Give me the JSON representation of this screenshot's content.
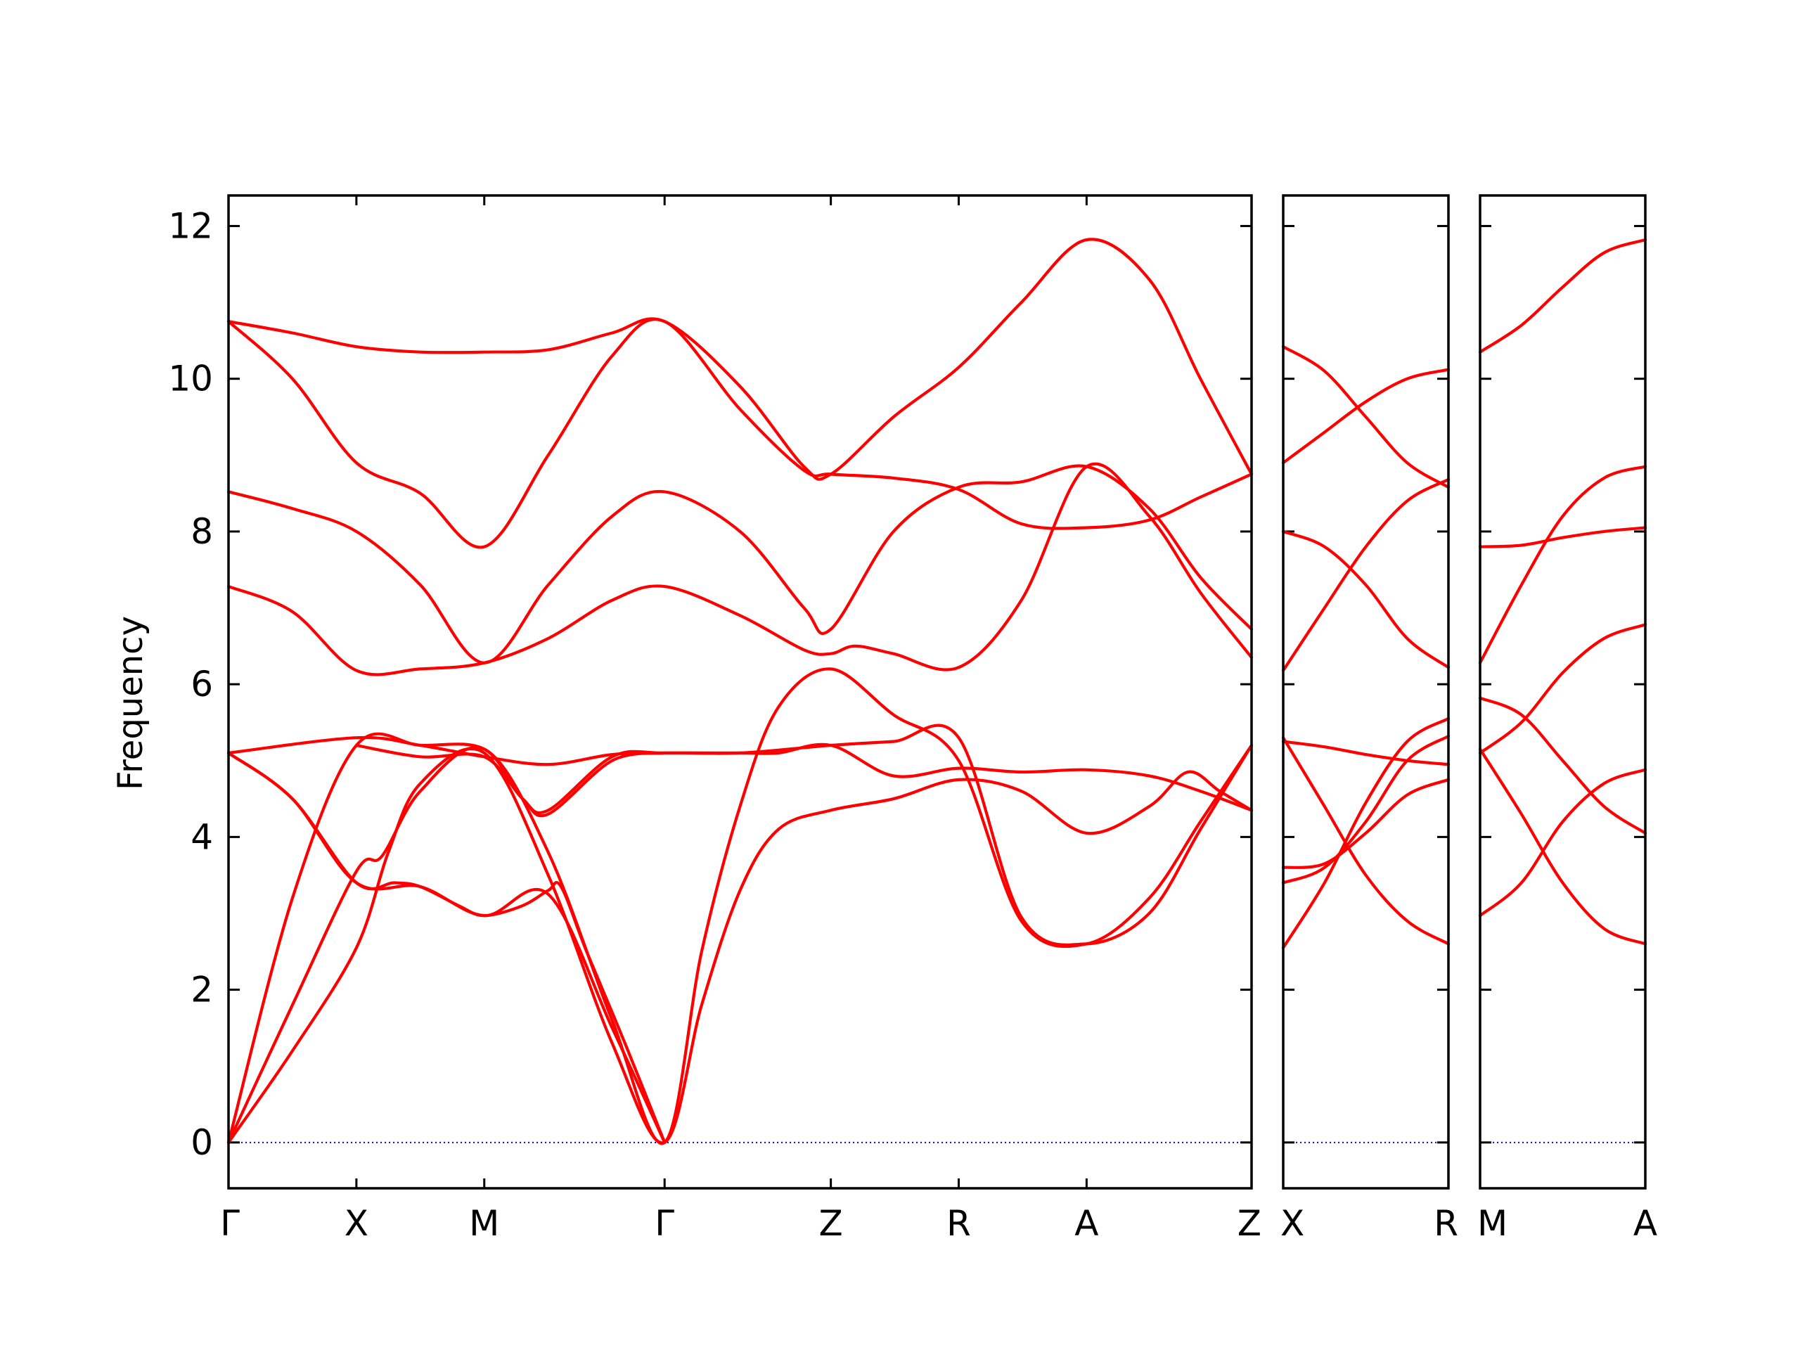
{
  "chart_data": {
    "type": "line",
    "ylabel": "Frequency",
    "ylim": [
      -0.6,
      12.4
    ],
    "yticks": [
      0,
      2,
      4,
      6,
      8,
      10,
      12
    ],
    "line_color": "#ff0000",
    "zero_line_color": "#0000ff",
    "grid": false,
    "panels": [
      {
        "id": "p1",
        "xlim": [
          0,
          8
        ],
        "kpoints": [
          {
            "label": "Γ",
            "x": 0
          },
          {
            "label": "X",
            "x": 1
          },
          {
            "label": "M",
            "x": 2
          },
          {
            "label": "Γ",
            "x": 3.41
          },
          {
            "label": "Z",
            "x": 4.71
          },
          {
            "label": "R",
            "x": 5.71
          },
          {
            "label": "A",
            "x": 6.71
          },
          {
            "label": "Z",
            "x": 8
          }
        ],
        "bands": [
          [
            [
              0,
              0
            ],
            [
              0.5,
              1.2
            ],
            [
              1,
              2.55
            ],
            [
              1.25,
              3.8
            ],
            [
              1.5,
              4.7
            ],
            [
              2,
              5.1
            ],
            [
              2.5,
              3.5
            ],
            [
              3,
              1.3
            ],
            [
              3.41,
              0
            ],
            [
              3.7,
              1.8
            ],
            [
              4,
              3.3
            ],
            [
              4.3,
              4.1
            ],
            [
              4.71,
              4.35
            ],
            [
              5.2,
              4.5
            ],
            [
              5.71,
              4.75
            ],
            [
              6.2,
              4.6
            ],
            [
              6.71,
              4.05
            ],
            [
              7.2,
              4.4
            ],
            [
              7.5,
              4.85
            ],
            [
              7.75,
              4.6
            ],
            [
              8,
              4.35
            ]
          ],
          [
            [
              0,
              0
            ],
            [
              0.5,
              1.8
            ],
            [
              1,
              3.55
            ],
            [
              1.2,
              3.75
            ],
            [
              1.5,
              4.6
            ],
            [
              2,
              5.15
            ],
            [
              2.5,
              3.8
            ],
            [
              3,
              1.6
            ],
            [
              3.41,
              0
            ],
            [
              3.7,
              2.5
            ],
            [
              4,
              4.4
            ],
            [
              4.3,
              5.7
            ],
            [
              4.71,
              6.2
            ],
            [
              5.2,
              5.6
            ],
            [
              5.71,
              5.0
            ],
            [
              6.2,
              2.9
            ],
            [
              6.71,
              2.6
            ],
            [
              7.2,
              3.2
            ],
            [
              7.6,
              4.2
            ],
            [
              8,
              5.2
            ]
          ],
          [
            [
              0,
              0
            ],
            [
              0.5,
              3.2
            ],
            [
              1,
              5.2
            ],
            [
              1.5,
              5.2
            ],
            [
              2,
              5.15
            ],
            [
              2.3,
              4.5
            ],
            [
              2.5,
              4.35
            ],
            [
              3,
              5.05
            ],
            [
              3.41,
              5.1
            ],
            [
              4,
              5.1
            ],
            [
              4.71,
              5.2
            ],
            [
              5.2,
              5.25
            ],
            [
              5.71,
              5.3
            ],
            [
              6.2,
              2.95
            ],
            [
              6.71,
              2.6
            ],
            [
              7.2,
              3.0
            ],
            [
              7.6,
              4.1
            ],
            [
              8,
              5.2
            ]
          ],
          [
            [
              0,
              5.1
            ],
            [
              0.5,
              4.5
            ],
            [
              1,
              3.4
            ],
            [
              1.5,
              3.35
            ],
            [
              2,
              2.97
            ],
            [
              2.5,
              3.25
            ],
            [
              3,
              1.5
            ],
            [
              3.41,
              0
            ]
          ],
          [
            [
              0,
              5.1
            ],
            [
              1,
              5.3
            ],
            [
              1.5,
              5.2
            ],
            [
              2,
              5.05
            ],
            [
              2.5,
              4.95
            ],
            [
              3,
              5.08
            ],
            [
              3.41,
              5.1
            ],
            [
              4,
              5.1
            ],
            [
              4.3,
              5.1
            ],
            [
              4.71,
              5.2
            ],
            [
              5.2,
              4.8
            ],
            [
              5.71,
              4.9
            ],
            [
              6.2,
              4.85
            ],
            [
              6.71,
              4.88
            ],
            [
              7.2,
              4.8
            ],
            [
              7.6,
              4.6
            ],
            [
              8,
              4.35
            ]
          ],
          [
            [
              0,
              5.1
            ],
            [
              0.5,
              4.5
            ],
            [
              1,
              3.4
            ],
            [
              1.3,
              3.4
            ],
            [
              1.5,
              3.35
            ],
            [
              1.8,
              3.1
            ],
            [
              2,
              2.97
            ],
            [
              2.3,
              3.1
            ],
            [
              2.5,
              3.3
            ],
            [
              2.6,
              3.35
            ],
            [
              2.8,
              2.5
            ],
            [
              3.1,
              1.3
            ],
            [
              3.41,
              0
            ]
          ],
          [
            [
              1,
              5.2
            ],
            [
              1.5,
              5.05
            ],
            [
              2,
              5.05
            ],
            [
              2.3,
              4.5
            ],
            [
              2.5,
              4.3
            ],
            [
              3,
              5.0
            ],
            [
              3.41,
              5.1
            ]
          ],
          [
            [
              0,
              7.28
            ],
            [
              0.5,
              6.95
            ],
            [
              1,
              6.18
            ],
            [
              1.5,
              6.2
            ],
            [
              2,
              6.28
            ],
            [
              2.5,
              6.6
            ],
            [
              3,
              7.1
            ],
            [
              3.41,
              7.28
            ],
            [
              4,
              6.9
            ],
            [
              4.5,
              6.45
            ],
            [
              4.71,
              6.4
            ],
            [
              4.9,
              6.5
            ],
            [
              5.2,
              6.4
            ],
            [
              5.71,
              6.22
            ],
            [
              6.2,
              7.1
            ],
            [
              6.71,
              8.85
            ],
            [
              7.2,
              8.2
            ],
            [
              7.6,
              7.2
            ],
            [
              8,
              6.35
            ]
          ],
          [
            [
              0,
              8.52
            ],
            [
              0.5,
              8.3
            ],
            [
              1,
              8.0
            ],
            [
              1.5,
              7.3
            ],
            [
              2,
              6.28
            ],
            [
              2.5,
              7.3
            ],
            [
              3,
              8.2
            ],
            [
              3.41,
              8.52
            ],
            [
              4,
              8.0
            ],
            [
              4.5,
              7.0
            ],
            [
              4.71,
              6.72
            ],
            [
              5.2,
              8.0
            ],
            [
              5.71,
              8.58
            ],
            [
              6.2,
              8.65
            ],
            [
              6.71,
              8.85
            ],
            [
              7.2,
              8.3
            ],
            [
              7.6,
              7.4
            ],
            [
              8,
              6.72
            ]
          ],
          [
            [
              0,
              10.75
            ],
            [
              0.5,
              10.0
            ],
            [
              1,
              8.9
            ],
            [
              1.5,
              8.5
            ],
            [
              2,
              7.8
            ],
            [
              2.5,
              9.0
            ],
            [
              3,
              10.3
            ],
            [
              3.41,
              10.75
            ],
            [
              4,
              9.6
            ],
            [
              4.5,
              8.8
            ],
            [
              4.71,
              8.75
            ],
            [
              5.2,
              8.7
            ],
            [
              5.71,
              8.55
            ],
            [
              6.2,
              8.1
            ],
            [
              6.71,
              8.05
            ],
            [
              7.2,
              8.15
            ],
            [
              7.6,
              8.45
            ],
            [
              8,
              8.75
            ]
          ],
          [
            [
              0,
              10.75
            ],
            [
              0.5,
              10.6
            ],
            [
              1,
              10.42
            ],
            [
              1.5,
              10.35
            ],
            [
              2,
              10.35
            ],
            [
              2.5,
              10.38
            ],
            [
              3,
              10.6
            ],
            [
              3.41,
              10.75
            ],
            [
              4,
              9.9
            ],
            [
              4.5,
              8.85
            ],
            [
              4.71,
              8.75
            ],
            [
              5.2,
              9.5
            ],
            [
              5.71,
              10.15
            ],
            [
              6.2,
              11.0
            ],
            [
              6.71,
              11.82
            ],
            [
              7.2,
              11.3
            ],
            [
              7.6,
              10.0
            ],
            [
              8,
              8.75
            ]
          ]
        ]
      },
      {
        "id": "p2",
        "xlim": [
          0,
          1
        ],
        "kpoints": [
          {
            "label": "X",
            "x": 0
          },
          {
            "label": "R",
            "x": 1
          }
        ],
        "bands": [
          [
            [
              0,
              10.42
            ],
            [
              0.25,
              10.1
            ],
            [
              0.5,
              9.5
            ],
            [
              0.75,
              8.9
            ],
            [
              1,
              8.58
            ]
          ],
          [
            [
              0,
              8.9
            ],
            [
              0.25,
              9.3
            ],
            [
              0.5,
              9.7
            ],
            [
              0.75,
              10.0
            ],
            [
              1,
              10.12
            ]
          ],
          [
            [
              0,
              8.0
            ],
            [
              0.25,
              7.8
            ],
            [
              0.5,
              7.3
            ],
            [
              0.75,
              6.6
            ],
            [
              1,
              6.22
            ]
          ],
          [
            [
              0,
              6.18
            ],
            [
              0.25,
              7.0
            ],
            [
              0.5,
              7.8
            ],
            [
              0.75,
              8.4
            ],
            [
              1,
              8.68
            ]
          ],
          [
            [
              0,
              5.3
            ],
            [
              0.25,
              4.4
            ],
            [
              0.5,
              3.5
            ],
            [
              0.75,
              2.9
            ],
            [
              1,
              2.6
            ]
          ],
          [
            [
              0,
              5.25
            ],
            [
              0.25,
              5.18
            ],
            [
              0.5,
              5.08
            ],
            [
              0.75,
              5.0
            ],
            [
              1,
              4.95
            ]
          ],
          [
            [
              0,
              3.6
            ],
            [
              0.25,
              3.65
            ],
            [
              0.5,
              4.05
            ],
            [
              0.75,
              4.55
            ],
            [
              1,
              4.75
            ]
          ],
          [
            [
              0,
              3.4
            ],
            [
              0.25,
              3.6
            ],
            [
              0.5,
              4.2
            ],
            [
              0.75,
              5.0
            ],
            [
              1,
              5.32
            ]
          ],
          [
            [
              0,
              2.55
            ],
            [
              0.25,
              3.4
            ],
            [
              0.5,
              4.45
            ],
            [
              0.75,
              5.25
            ],
            [
              1,
              5.55
            ]
          ]
        ]
      },
      {
        "id": "p3",
        "xlim": [
          0,
          1
        ],
        "kpoints": [
          {
            "label": "M",
            "x": 0
          },
          {
            "label": "A",
            "x": 1
          }
        ],
        "bands": [
          [
            [
              0,
              10.35
            ],
            [
              0.25,
              10.7
            ],
            [
              0.5,
              11.2
            ],
            [
              0.75,
              11.65
            ],
            [
              1,
              11.82
            ]
          ],
          [
            [
              0,
              7.8
            ],
            [
              0.25,
              7.82
            ],
            [
              0.5,
              7.92
            ],
            [
              0.75,
              8.0
            ],
            [
              1,
              8.05
            ]
          ],
          [
            [
              0,
              6.28
            ],
            [
              0.25,
              7.3
            ],
            [
              0.5,
              8.2
            ],
            [
              0.75,
              8.7
            ],
            [
              1,
              8.85
            ]
          ],
          [
            [
              0,
              5.82
            ],
            [
              0.25,
              5.6
            ],
            [
              0.5,
              5.0
            ],
            [
              0.75,
              4.4
            ],
            [
              1,
              4.05
            ]
          ],
          [
            [
              0,
              5.15
            ],
            [
              0.25,
              4.3
            ],
            [
              0.5,
              3.4
            ],
            [
              0.75,
              2.8
            ],
            [
              1,
              2.6
            ]
          ],
          [
            [
              0,
              5.1
            ],
            [
              0.25,
              5.5
            ],
            [
              0.5,
              6.15
            ],
            [
              0.75,
              6.6
            ],
            [
              1,
              6.78
            ]
          ],
          [
            [
              0,
              2.97
            ],
            [
              0.25,
              3.4
            ],
            [
              0.5,
              4.2
            ],
            [
              0.75,
              4.7
            ],
            [
              1,
              4.88
            ]
          ]
        ]
      }
    ]
  }
}
